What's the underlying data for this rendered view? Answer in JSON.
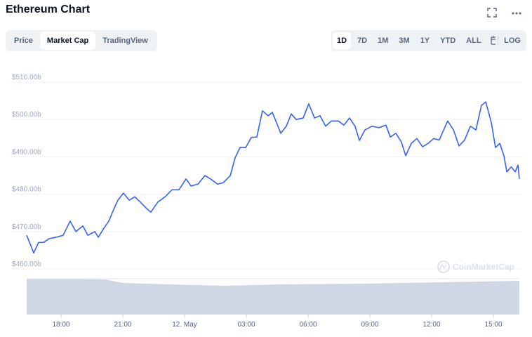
{
  "title": "Ethereum Chart",
  "tabs": [
    "Price",
    "Market Cap",
    "TradingView"
  ],
  "ranges": [
    "1D",
    "7D",
    "1M",
    "3M",
    "1Y",
    "YTD",
    "ALL"
  ],
  "log_button": "LOG",
  "watermark": "CoinMarketCap",
  "chart_data": {
    "type": "line",
    "color": "#3861fb",
    "grid": true,
    "x": [
      16.33,
      16.47,
      16.67,
      16.91,
      17.15,
      17.42,
      17.76,
      18.1,
      18.44,
      18.72,
      19.06,
      19.3,
      19.64,
      19.81,
      20.08,
      20.32,
      20.56,
      20.76,
      21.03,
      21.31,
      21.58,
      21.85,
      22.19,
      22.36,
      22.7,
      23.05,
      23.39,
      23.73,
      24.07,
      24.31,
      24.65,
      24.99,
      25.26,
      25.6,
      25.88,
      26.22,
      26.45,
      26.69,
      26.97,
      27.24,
      27.51,
      27.78,
      28.06,
      28.26,
      28.47,
      28.67,
      28.94,
      29.18,
      29.42,
      29.76,
      30.03,
      30.31,
      30.58,
      30.85,
      31.13,
      31.47,
      31.74,
      32.01,
      32.28,
      32.49,
      32.76,
      33.1,
      33.44,
      33.78,
      33.99,
      34.26,
      34.53,
      34.74,
      35.01,
      35.28,
      35.56,
      35.83,
      36.1,
      36.37,
      36.58,
      36.78,
      37.06,
      37.33,
      37.6,
      37.88,
      38.15,
      38.42,
      38.63,
      38.9,
      39.1,
      39.31,
      39.51,
      39.65,
      39.86,
      40.06,
      40.19,
      40.26
    ],
    "values": [
      469.0,
      467.1,
      464.3,
      467.1,
      467.1,
      468.1,
      468.5,
      469.0,
      472.8,
      470.0,
      471.5,
      469.0,
      470.0,
      468.5,
      470.9,
      472.8,
      476.0,
      478.4,
      480.3,
      478.4,
      479.3,
      477.9,
      476.0,
      475.2,
      477.9,
      479.3,
      481.2,
      481.2,
      484.1,
      482.2,
      482.7,
      485.0,
      484.1,
      482.7,
      483.1,
      485.0,
      489.7,
      492.5,
      492.5,
      495.2,
      495.3,
      502.3,
      501.0,
      501.9,
      499.1,
      496.3,
      498.2,
      501.5,
      500.0,
      500.4,
      504.2,
      500.4,
      501.0,
      498.2,
      499.6,
      499.6,
      498.5,
      500.4,
      498.2,
      494.4,
      497.2,
      498.2,
      497.8,
      498.5,
      495.3,
      496.3,
      494.0,
      490.3,
      493.6,
      494.9,
      492.7,
      493.6,
      494.9,
      494.5,
      497.2,
      499.6,
      497.2,
      492.9,
      494.5,
      498.2,
      497.2,
      503.8,
      504.7,
      499.1,
      492.5,
      493.6,
      490.3,
      486.0,
      487.3,
      486.0,
      487.8,
      484.1
    ],
    "xlim": [
      16.33,
      40.26
    ],
    "xticks": [
      {
        "value": 18,
        "label": "18:00"
      },
      {
        "value": 21,
        "label": "21:00"
      },
      {
        "value": 24,
        "label": "12. May"
      },
      {
        "value": 27,
        "label": "03:00"
      },
      {
        "value": 30,
        "label": "06:00"
      },
      {
        "value": 33,
        "label": "09:00"
      },
      {
        "value": 36,
        "label": "12:00"
      },
      {
        "value": 39,
        "label": "15:00"
      }
    ],
    "ylim": [
      458.7,
      513
    ],
    "yticks": [
      {
        "value": 460,
        "label": "$460.00b"
      },
      {
        "value": 470,
        "label": "$470.00b"
      },
      {
        "value": 480,
        "label": "$480.00b"
      },
      {
        "value": 490,
        "label": "$490.00b"
      },
      {
        "value": 500,
        "label": "$500.00b"
      },
      {
        "value": 510,
        "label": "$510.00b"
      }
    ]
  }
}
